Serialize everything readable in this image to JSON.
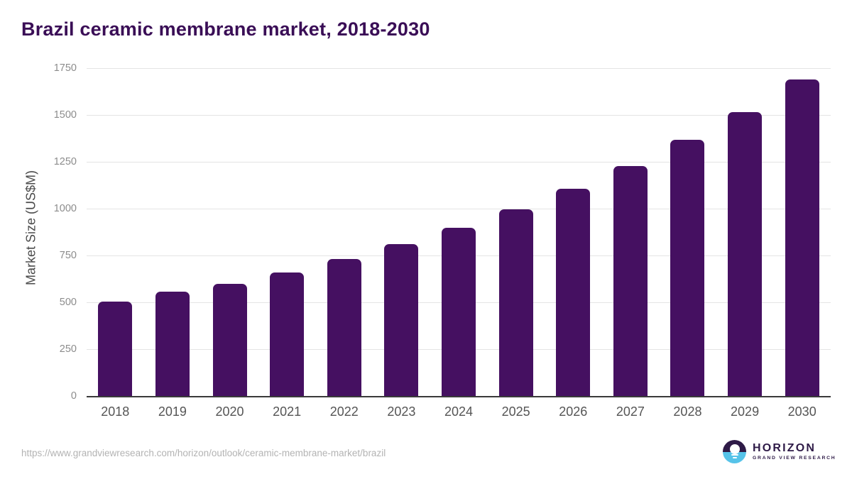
{
  "header": {
    "title": "Brazil ceramic membrane market, 2018-2030"
  },
  "chart_data": {
    "type": "bar",
    "title": "Brazil ceramic membrane market, 2018-2030",
    "categories": [
      "2018",
      "2019",
      "2020",
      "2021",
      "2022",
      "2023",
      "2024",
      "2025",
      "2026",
      "2027",
      "2028",
      "2029",
      "2030"
    ],
    "values": [
      505,
      555,
      600,
      661,
      730,
      810,
      899,
      996,
      1108,
      1228,
      1367,
      1515,
      1689
    ],
    "xlabel": "",
    "ylabel": "Market Size (US$M)",
    "ylim": [
      0,
      1750
    ],
    "yticks": [
      0,
      250,
      500,
      750,
      1000,
      1250,
      1500,
      1750
    ],
    "grid": "horizontal-only",
    "legend": "none",
    "bar_color": "#451061"
  },
  "footer": {
    "source_url": "https://www.grandviewresearch.com/horizon/outlook/ceramic-membrane-market/brazil",
    "logo": {
      "brand": "HORIZON",
      "sub_brand": "GRAND VIEW RESEARCH"
    }
  },
  "colors": {
    "bar": "#451061",
    "title_text": "#3a0e56",
    "axis_line": "#3a3a3a",
    "gridline": "#e4e4e4",
    "y_tick_text": "#8c8c8c",
    "x_tick_text": "#555555",
    "y_axis_title_text": "#4a4a4a",
    "source_text": "#b3b3b3",
    "logo_purple": "#2e1a47",
    "logo_blue": "#56c3e9"
  }
}
